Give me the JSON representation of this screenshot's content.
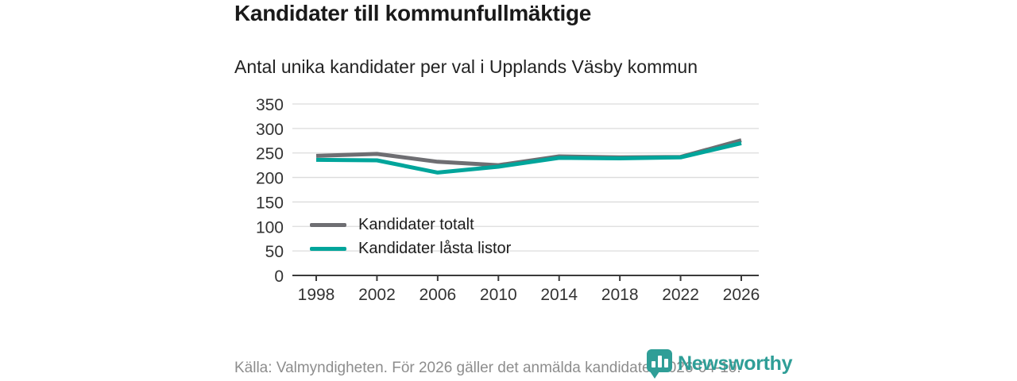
{
  "header": {
    "title": "Kandidater till kommunfullmäktige",
    "subtitle": "Antal unika kandidater per val i Upplands Väsby kommun"
  },
  "chart_data": {
    "type": "line",
    "title": "Kandidater till kommunfullmäktige",
    "subtitle": "Antal unika kandidater per val i Upplands Väsby kommun",
    "x": [
      1998,
      2002,
      2006,
      2010,
      2014,
      2018,
      2022,
      2026
    ],
    "series": [
      {
        "name": "Kandidater totalt",
        "color": "#6e6e72",
        "values": [
          244,
          248,
          232,
          225,
          243,
          241,
          242,
          276
        ]
      },
      {
        "name": "Kandidater låsta listor",
        "color": "#00a59b",
        "values": [
          236,
          235,
          210,
          222,
          240,
          239,
          241,
          270
        ]
      }
    ],
    "ylim": [
      0,
      350
    ],
    "ytick_step": 50,
    "grid": true,
    "legend_position": "inside-left",
    "colors": {
      "gridline": "#dcdcdc",
      "axis": "#3a3a3a",
      "tick_label": "#333333"
    }
  },
  "legend": {
    "items": [
      {
        "label": "Kandidater totalt",
        "color": "#6e6e72"
      },
      {
        "label": "Kandidater låsta listor",
        "color": "#00a59b"
      }
    ]
  },
  "footer": {
    "source_text": "Källa: Valmyndigheten. För 2026 gäller det anmälda kandidater 2026-04-10."
  },
  "brand": {
    "name": "Newsworthy",
    "color": "#2f9e97"
  }
}
